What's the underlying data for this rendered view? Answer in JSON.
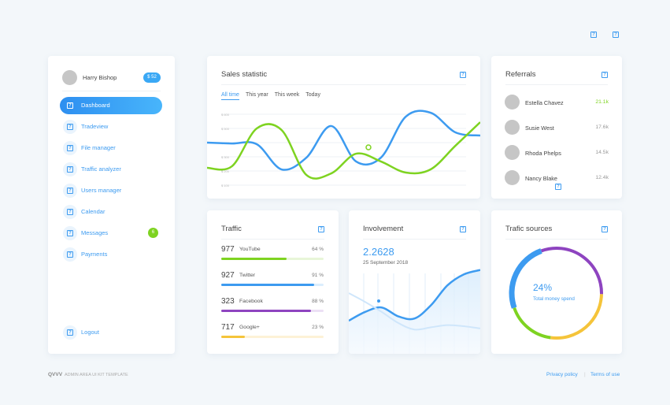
{
  "top_icons": [
    "help-icon",
    "help-icon"
  ],
  "sidebar": {
    "user": {
      "name": "Harry Bishop",
      "balance": "$ 52"
    },
    "items": [
      {
        "label": "Dashboard",
        "active": true
      },
      {
        "label": "Tradeview"
      },
      {
        "label": "File manager"
      },
      {
        "label": "Traffic analyzer"
      },
      {
        "label": "Users manager"
      },
      {
        "label": "Calendar"
      },
      {
        "label": "Messages",
        "badge": "6"
      },
      {
        "label": "Payments"
      }
    ],
    "logout": "Logout"
  },
  "sales": {
    "title": "Sales statistic",
    "tabs": [
      "All time",
      "This year",
      "This week",
      "Today"
    ],
    "active_tab": "All time"
  },
  "chart_data": [
    {
      "type": "line",
      "title": "Sales statistic",
      "y_tick_labels": [
        "$ 600",
        "$ 500",
        "$ 400",
        "$ 300",
        "$ 200",
        "$ 100"
      ],
      "ylim": [
        50,
        690
      ],
      "grid": true,
      "series": [
        {
          "color": "#3d9bf0",
          "values": [
            400,
            394,
            389,
            211,
            294,
            517,
            267,
            294,
            583,
            611,
            472,
            450
          ]
        },
        {
          "color": "#7ed321",
          "values": [
            222,
            233,
            500,
            489,
            172,
            183,
            322,
            267,
            189,
            211,
            378,
            544
          ]
        }
      ]
    },
    {
      "type": "area",
      "title": "Involvement",
      "series": [
        {
          "color": "#3d9bf0",
          "values": [
            30,
            38,
            42,
            34,
            32,
            44,
            62,
            72,
            76
          ]
        },
        {
          "color": "#cfe6fb",
          "values": [
            55,
            47,
            38,
            28,
            22,
            24,
            26,
            25,
            23
          ]
        }
      ]
    },
    {
      "type": "pie",
      "title": "Trafic sources",
      "segments": [
        {
          "color": "#8e44c0",
          "value": 30
        },
        {
          "color": "#f5c43a",
          "value": 26
        },
        {
          "color": "#7ed321",
          "value": 17
        },
        {
          "color": "#3d9bf0",
          "value": 24
        }
      ]
    }
  ],
  "referrals": {
    "title": "Referrals",
    "items": [
      {
        "name": "Estella Chavez",
        "value": "21.1k",
        "color": "#7ed321"
      },
      {
        "name": "Susie West",
        "value": "17.6k"
      },
      {
        "name": "Rhoda Phelps",
        "value": "14.5k"
      },
      {
        "name": "Nancy Blake",
        "value": "12.4k"
      }
    ]
  },
  "traffic": {
    "title": "Traffic",
    "items": [
      {
        "count": "977",
        "source": "YouTube",
        "percent": "64 %",
        "fill": 64,
        "color": "#7ed321",
        "bg": "#e8f6d8"
      },
      {
        "count": "927",
        "source": "Twitter",
        "percent": "91 %",
        "fill": 91,
        "color": "#3d9bf0",
        "bg": "#dbeefd"
      },
      {
        "count": "323",
        "source": "Facebook",
        "percent": "88 %",
        "fill": 88,
        "color": "#8e44c0",
        "bg": "#ece0f5"
      },
      {
        "count": "717",
        "source": "Google+",
        "percent": "23 %",
        "fill": 23,
        "color": "#f5c43a",
        "bg": "#fdf2d6"
      }
    ]
  },
  "involvement": {
    "title": "Involvement",
    "value": "2.2628",
    "date": "25 September 2018"
  },
  "sources": {
    "title": "Trafic sources",
    "percent": "24%",
    "label": "Total money spend"
  },
  "footer": {
    "logo": "QVVV",
    "tagline": "ADMIN AREA UI KIT TEMPLATE",
    "privacy": "Privacy policy",
    "terms": "Terms of use"
  }
}
